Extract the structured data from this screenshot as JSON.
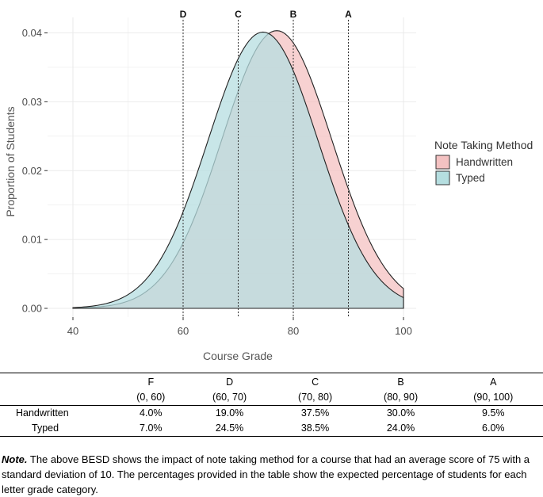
{
  "chart_data": {
    "type": "area",
    "xlabel": "Course Grade",
    "ylabel": "Proportion of Students",
    "xlim": [
      40,
      100
    ],
    "ylim": [
      0,
      0.041
    ],
    "x_ticks": [
      "40",
      "60",
      "80",
      "100"
    ],
    "y_ticks": [
      "0.00",
      "0.01",
      "0.02",
      "0.03",
      "0.04"
    ],
    "grid": true,
    "legend": {
      "title": "Note Taking Method",
      "placement": "right"
    },
    "series": [
      {
        "name": "Handwritten",
        "mean": 77,
        "sd": 10,
        "color": "#F4C2C2"
      },
      {
        "name": "Typed",
        "mean": 74.5,
        "sd": 10,
        "color": "#B5DEE0"
      }
    ],
    "cutoffs": [
      {
        "x": 60,
        "label": "D"
      },
      {
        "x": 70,
        "label": "C"
      },
      {
        "x": 80,
        "label": "B"
      },
      {
        "x": 90,
        "label": "A"
      }
    ]
  },
  "table": {
    "columns": [
      {
        "grade": "F",
        "range": "(0, 60)"
      },
      {
        "grade": "D",
        "range": "(60, 70)"
      },
      {
        "grade": "C",
        "range": "(70, 80)"
      },
      {
        "grade": "B",
        "range": "(80, 90)"
      },
      {
        "grade": "A",
        "range": "(90, 100)"
      }
    ],
    "rows": [
      {
        "label": "Handwritten",
        "values": [
          "4.0%",
          "19.0%",
          "37.5%",
          "30.0%",
          "9.5%"
        ]
      },
      {
        "label": "Typed",
        "values": [
          "7.0%",
          "24.5%",
          "38.5%",
          "24.0%",
          "6.0%"
        ]
      }
    ]
  },
  "note": {
    "lead": "Note.",
    "text": " The above BESD shows the impact of note taking method for a course that had an average score of 75 with a standard deviation of 10.  The percentages provided in the table show the expected percentage of students for each letter grade category."
  }
}
